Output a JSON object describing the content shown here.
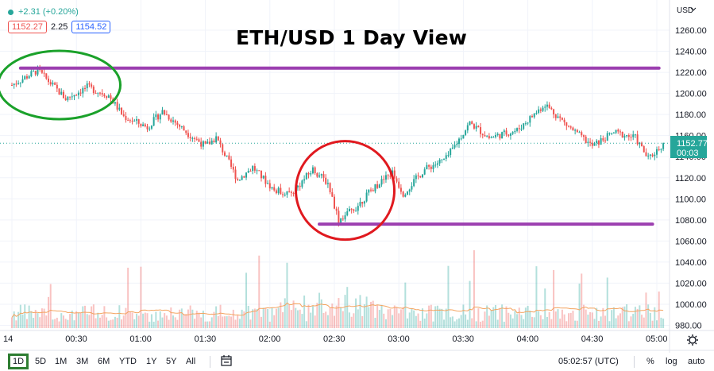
{
  "chart_title": "ETH/USD 1 Day View",
  "header": {
    "change": "+2.31 (+0.20%)",
    "bid": "1152.27",
    "spread": "2.25",
    "ask": "1154.52"
  },
  "price_axis": {
    "currency": "USD",
    "current_price": "1152.77",
    "countdown": "00:03"
  },
  "toolbar": {
    "timeframes": [
      "1D",
      "5D",
      "1M",
      "3M",
      "6M",
      "YTD",
      "1Y",
      "5Y",
      "All"
    ],
    "selected": "1D",
    "clock": "05:02:57 (UTC)",
    "percent": "%",
    "log": "log",
    "auto": "auto"
  },
  "colors": {
    "up": "#26a69a",
    "down": "#ef5350",
    "annotation_lines": "#9c3fb0",
    "circle_green": "#1aa12a",
    "circle_red": "#e0191f",
    "volume_ma": "#f4a460"
  },
  "chart_data": {
    "type": "candlestick",
    "title": "ETH/USD 1 Day View",
    "ylim": [
      975,
      1270
    ],
    "y_ticks": [
      980,
      1000,
      1020,
      1040,
      1060,
      1080,
      1100,
      1120,
      1140,
      1160,
      1180,
      1200,
      1220,
      1240,
      1260
    ],
    "x_ticks": [
      "14",
      "00:30",
      "01:00",
      "01:30",
      "02:00",
      "02:30",
      "03:00",
      "03:30",
      "04:00",
      "04:30",
      "05:00"
    ],
    "x_tick_minutes": [
      0,
      30,
      60,
      90,
      120,
      150,
      180,
      210,
      240,
      270,
      300
    ],
    "price_path": [
      {
        "t": 0,
        "p": 1208
      },
      {
        "t": 12,
        "p": 1222
      },
      {
        "t": 25,
        "p": 1195
      },
      {
        "t": 35,
        "p": 1206
      },
      {
        "t": 45,
        "p": 1198
      },
      {
        "t": 52,
        "p": 1178
      },
      {
        "t": 63,
        "p": 1168
      },
      {
        "t": 70,
        "p": 1183
      },
      {
        "t": 82,
        "p": 1162
      },
      {
        "t": 90,
        "p": 1150
      },
      {
        "t": 95,
        "p": 1158
      },
      {
        "t": 105,
        "p": 1118
      },
      {
        "t": 112,
        "p": 1130
      },
      {
        "t": 122,
        "p": 1108
      },
      {
        "t": 130,
        "p": 1105
      },
      {
        "t": 140,
        "p": 1128
      },
      {
        "t": 147,
        "p": 1115
      },
      {
        "t": 152,
        "p": 1080
      },
      {
        "t": 160,
        "p": 1092
      },
      {
        "t": 168,
        "p": 1110
      },
      {
        "t": 177,
        "p": 1125
      },
      {
        "t": 182,
        "p": 1105
      },
      {
        "t": 192,
        "p": 1128
      },
      {
        "t": 202,
        "p": 1138
      },
      {
        "t": 213,
        "p": 1172
      },
      {
        "t": 222,
        "p": 1158
      },
      {
        "t": 235,
        "p": 1165
      },
      {
        "t": 248,
        "p": 1190
      },
      {
        "t": 258,
        "p": 1170
      },
      {
        "t": 270,
        "p": 1150
      },
      {
        "t": 280,
        "p": 1163
      },
      {
        "t": 290,
        "p": 1158
      },
      {
        "t": 296,
        "p": 1138
      },
      {
        "t": 303,
        "p": 1152
      }
    ],
    "annotations": {
      "resistance_level": 1224,
      "support_level": 1076
    }
  }
}
